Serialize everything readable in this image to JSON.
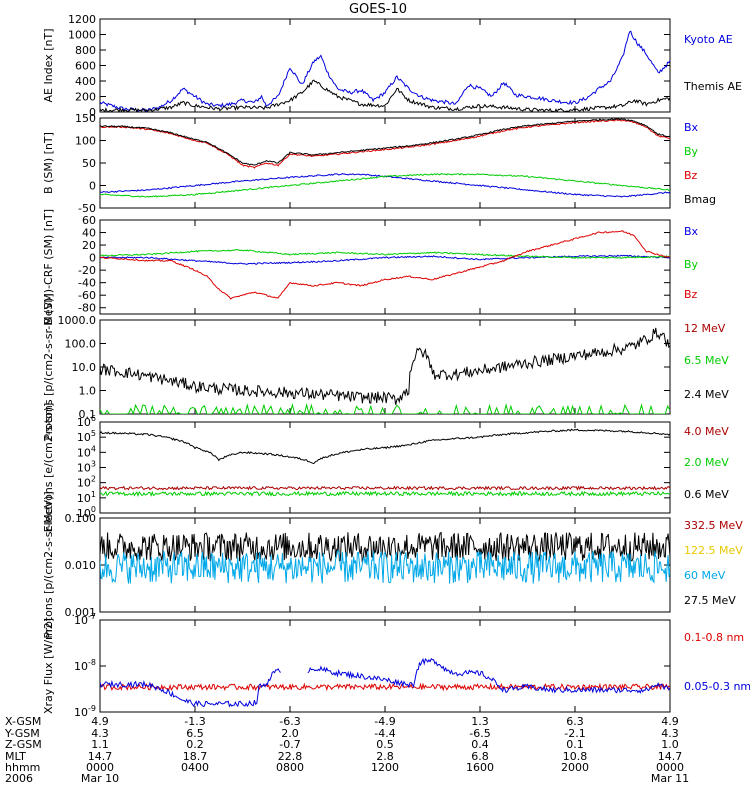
{
  "title": "GOES-10",
  "colors": {
    "black": "#000000",
    "blue": "#0000dd",
    "red": "#dd0000",
    "green": "#00cc00",
    "darkred": "#aa0000",
    "yellow": "#e6c800",
    "cyan": "#00a8e8"
  },
  "time": {
    "xlim": [
      0,
      24
    ],
    "ticks": [
      0,
      4,
      8,
      12,
      16,
      20,
      24
    ]
  },
  "ephem": {
    "labels": [
      "X-GSM",
      "Y-GSM",
      "Z-GSM",
      "MLT",
      "hhmm",
      "2006"
    ],
    "columns": [
      [
        "4.9",
        "4.3",
        "1.1",
        "14.7",
        "0000",
        "Mar 10"
      ],
      [
        "-1.3",
        "6.5",
        "0.2",
        "18.7",
        "0400",
        ""
      ],
      [
        "-6.3",
        "2.0",
        "-0.7",
        "22.8",
        "0800",
        ""
      ],
      [
        "-4.9",
        "-4.4",
        "0.5",
        "2.8",
        "1200",
        ""
      ],
      [
        "1.3",
        "-6.5",
        "0.4",
        "6.8",
        "1600",
        ""
      ],
      [
        "6.3",
        "-2.1",
        "0.1",
        "10.8",
        "2000",
        ""
      ],
      [
        "4.9",
        "4.3",
        "1.0",
        "14.7",
        "0000",
        "Mar 11"
      ]
    ]
  },
  "chart_data": [
    {
      "type": "line",
      "ylabel": "AE Index [nT]",
      "ylim": [
        0,
        1200
      ],
      "ticks": [
        "0",
        "200",
        "400",
        "600",
        "800",
        "1000",
        "1200"
      ],
      "legend": [
        {
          "name": "Kyoto AE",
          "color": "blue"
        },
        {
          "name": "Themis AE",
          "color": "black"
        }
      ],
      "series": [
        {
          "name": "Kyoto AE",
          "color": "blue",
          "x": [
            0,
            0.5,
            1,
            1.5,
            2,
            2.5,
            3,
            3.5,
            4,
            4.5,
            5,
            5.5,
            6,
            6.5,
            6.8,
            7,
            7.5,
            8,
            8.5,
            9,
            9.3,
            9.6,
            10,
            10.5,
            11,
            11.5,
            12,
            12.5,
            13,
            13.5,
            14,
            14.5,
            15,
            15.5,
            16,
            16.5,
            17,
            17.5,
            18,
            18.5,
            19,
            19.5,
            20,
            20.5,
            21,
            21.5,
            22,
            22.3,
            22.6,
            23,
            23.5,
            24
          ],
          "y": [
            120,
            80,
            40,
            30,
            20,
            60,
            150,
            300,
            200,
            100,
            80,
            100,
            150,
            120,
            200,
            80,
            200,
            580,
            350,
            650,
            720,
            500,
            300,
            250,
            280,
            150,
            250,
            450,
            300,
            200,
            150,
            130,
            100,
            350,
            300,
            200,
            380,
            220,
            200,
            180,
            150,
            130,
            120,
            180,
            300,
            400,
            700,
            1050,
            900,
            750,
            500,
            650
          ]
        },
        {
          "name": "Themis AE",
          "color": "black",
          "x": [
            0,
            1,
            2,
            3,
            3.5,
            4,
            5,
            6,
            7,
            7.5,
            8,
            8.5,
            9,
            9.5,
            10,
            11,
            12,
            12.5,
            13,
            14,
            15,
            16,
            17,
            18,
            19,
            20,
            21,
            22,
            22.5,
            23,
            23.5,
            24
          ],
          "y": [
            20,
            30,
            20,
            60,
            120,
            80,
            40,
            60,
            50,
            100,
            150,
            250,
            400,
            300,
            200,
            100,
            80,
            300,
            150,
            60,
            40,
            80,
            60,
            30,
            20,
            30,
            50,
            80,
            150,
            100,
            150,
            180
          ]
        }
      ]
    },
    {
      "type": "line",
      "ylabel": "B (SM) [nT]",
      "ylim": [
        -50,
        150
      ],
      "ticks": [
        "-50",
        "0",
        "50",
        "100",
        "150"
      ],
      "legend": [
        {
          "name": "Bx",
          "color": "blue"
        },
        {
          "name": "By",
          "color": "green"
        },
        {
          "name": "Bz",
          "color": "red"
        },
        {
          "name": "Bmag",
          "color": "black"
        }
      ],
      "series": [
        {
          "name": "Bx",
          "color": "blue",
          "x": [
            0,
            2,
            4,
            6,
            8,
            10,
            11,
            12,
            14,
            16,
            18,
            20,
            22,
            24
          ],
          "y": [
            -15,
            -10,
            0,
            10,
            18,
            25,
            25,
            20,
            10,
            0,
            -10,
            -20,
            -25,
            -15
          ]
        },
        {
          "name": "By",
          "color": "green",
          "x": [
            0,
            2,
            4,
            6,
            8,
            10,
            12,
            14,
            16,
            18,
            20,
            22,
            24
          ],
          "y": [
            -20,
            -25,
            -20,
            -10,
            0,
            10,
            20,
            25,
            25,
            20,
            10,
            0,
            -10
          ]
        },
        {
          "name": "Bz",
          "color": "red",
          "x": [
            0,
            1,
            2,
            3,
            4,
            4.5,
            5,
            5.5,
            6,
            6.5,
            7,
            7.5,
            8,
            9,
            10,
            12,
            13,
            14,
            15,
            16,
            17,
            18,
            19,
            20,
            21,
            22,
            22.5,
            23,
            23.5,
            24
          ],
          "y": [
            130,
            130,
            125,
            115,
            100,
            95,
            80,
            65,
            45,
            40,
            50,
            45,
            70,
            65,
            70,
            80,
            85,
            92,
            100,
            110,
            122,
            130,
            135,
            140,
            143,
            145,
            140,
            130,
            110,
            105
          ]
        },
        {
          "name": "Bmag",
          "color": "black",
          "x": [
            0,
            1,
            2,
            3,
            4,
            4.5,
            5,
            5.5,
            6,
            6.5,
            7,
            7.5,
            8,
            9,
            10,
            12,
            13,
            14,
            15,
            16,
            17,
            18,
            19,
            20,
            21,
            22,
            22.5,
            23,
            23.5,
            24
          ],
          "y": [
            132,
            131,
            127,
            117,
            102,
            97,
            82,
            67,
            50,
            45,
            55,
            50,
            73,
            68,
            73,
            83,
            88,
            95,
            103,
            113,
            125,
            133,
            138,
            143,
            146,
            148,
            143,
            133,
            114,
            108
          ]
        }
      ]
    },
    {
      "type": "line",
      "ylabel": "B (SM)-CRF (SM) [nT]",
      "ylim": [
        -90,
        60
      ],
      "ticks": [
        "-80",
        "-60",
        "-40",
        "-20",
        "0",
        "20",
        "40",
        "60"
      ],
      "legend": [
        {
          "name": "Bx",
          "color": "blue"
        },
        {
          "name": "By",
          "color": "green"
        },
        {
          "name": "Bz",
          "color": "red"
        }
      ],
      "series": [
        {
          "name": "Bx",
          "color": "blue",
          "x": [
            0,
            2,
            4,
            6,
            8,
            10,
            12,
            14,
            16,
            18,
            20,
            22,
            24
          ],
          "y": [
            0,
            0,
            -5,
            -10,
            -8,
            -5,
            0,
            2,
            -3,
            0,
            2,
            3,
            0
          ]
        },
        {
          "name": "By",
          "color": "green",
          "x": [
            0,
            2,
            4,
            6,
            8,
            10,
            12,
            14,
            16,
            18,
            20,
            22,
            24
          ],
          "y": [
            3,
            5,
            10,
            12,
            5,
            8,
            5,
            8,
            5,
            2,
            0,
            0,
            2
          ]
        },
        {
          "name": "Bz",
          "color": "red",
          "x": [
            0,
            1,
            2,
            3,
            4,
            4.5,
            5,
            5.5,
            6,
            6.5,
            7,
            7.5,
            8,
            9,
            10,
            11,
            12,
            13,
            14,
            15,
            16,
            17,
            18,
            19,
            20,
            21,
            22,
            22.5,
            23,
            23.5,
            24
          ],
          "y": [
            0,
            -2,
            -5,
            -5,
            -20,
            -30,
            -50,
            -65,
            -60,
            -55,
            -60,
            -65,
            -40,
            -45,
            -40,
            -45,
            -35,
            -30,
            -35,
            -25,
            -15,
            -5,
            10,
            20,
            30,
            40,
            42,
            35,
            10,
            5,
            0
          ]
        }
      ]
    },
    {
      "type": "line",
      "log": true,
      "ylabel": "Protons [p/(cm2-s-sr-MeV)]",
      "ylim": [
        0.1,
        1000
      ],
      "ticks": [
        "0.1",
        "1.0",
        "10.0",
        "100.0",
        "1000.0"
      ],
      "legend": [
        {
          "name": "12 MeV",
          "color": "darkred"
        },
        {
          "name": "6.5 MeV",
          "color": "green"
        },
        {
          "name": "2.4 MeV",
          "color": "black"
        }
      ],
      "series": [
        {
          "name": "2.4 MeV",
          "color": "black",
          "x": [
            0,
            1,
            2,
            3,
            4,
            5,
            6,
            7,
            8,
            9,
            10,
            11,
            12,
            12.5,
            13,
            13.5,
            14,
            15,
            16,
            17,
            18,
            19,
            20,
            21,
            22,
            22.5,
            23,
            23.5,
            24
          ],
          "y": [
            8,
            6,
            4,
            2.5,
            1.5,
            1.2,
            1.0,
            0.9,
            0.8,
            0.7,
            0.6,
            0.5,
            0.5,
            0.4,
            1.0,
            50,
            5,
            5,
            7,
            10,
            15,
            20,
            30,
            40,
            60,
            80,
            150,
            300,
            60
          ]
        }
      ]
    },
    {
      "type": "line",
      "log": true,
      "ylabel": "Electrons [e/(cm2-s-sr)]",
      "ylim": [
        1,
        1000000
      ],
      "ticks": [
        "10^0",
        "10^1",
        "10^2",
        "10^3",
        "10^4",
        "10^5",
        "10^6"
      ],
      "legend": [
        {
          "name": "4.0 MeV",
          "color": "darkred"
        },
        {
          "name": "2.0 MeV",
          "color": "green"
        },
        {
          "name": "0.6 MeV",
          "color": "black"
        }
      ],
      "series": [
        {
          "name": "0.6 MeV",
          "color": "black",
          "x": [
            0,
            2,
            3,
            4,
            5,
            6,
            7,
            8,
            9,
            10,
            11,
            12,
            13,
            14,
            15,
            16,
            18,
            20,
            22,
            24
          ],
          "y": [
            200000,
            150000,
            80000,
            20000,
            3000,
            10000,
            8000,
            5000,
            2000,
            8000,
            15000,
            20000,
            30000,
            60000,
            80000,
            100000,
            200000,
            300000,
            250000,
            150000
          ]
        }
      ]
    },
    {
      "type": "line",
      "log": true,
      "ylabel": "Protons [p/(cm2-s-sr-MeV)]",
      "ylim": [
        0.001,
        0.1
      ],
      "ticks": [
        "0.001",
        "0.010",
        "0.100"
      ],
      "legend": [
        {
          "name": "332.5 MeV",
          "color": "darkred"
        },
        {
          "name": "122.5 MeV",
          "color": "yellow"
        },
        {
          "name": "60 MeV",
          "color": "cyan"
        },
        {
          "name": "27.5 MeV",
          "color": "black"
        }
      ],
      "series": []
    },
    {
      "type": "line",
      "log": true,
      "ylabel": "Xray Flux [W/m2]",
      "ylim": [
        1e-09,
        1e-07
      ],
      "ticks": [
        "10^-9",
        "10^-8",
        "10^-7"
      ],
      "legend": [
        {
          "name": "0.1-0.8 nm",
          "color": "red"
        },
        {
          "name": "0.05-0.3 nm",
          "color": "blue"
        }
      ],
      "series": [
        {
          "name": "0.1-0.8 nm",
          "color": "red",
          "x": [
            0,
            6.9,
            7.7,
            24
          ],
          "y": [
            3.5e-09,
            3.5e-09,
            3.5e-09,
            3.5e-09
          ]
        },
        {
          "name": "0.05-0.3 nm",
          "color": "blue",
          "x": [
            0,
            2,
            3,
            3.5,
            4,
            5,
            6,
            6.6,
            6.7,
            7.0,
            7.3,
            7.6,
            8.2,
            8.7,
            9,
            10,
            11,
            12,
            13,
            13.2,
            13.5,
            14,
            14.3,
            14.6,
            15,
            16,
            17,
            18,
            19,
            20,
            21,
            22,
            23,
            23.5,
            24
          ],
          "y": [
            4e-09,
            4e-09,
            2.5e-09,
            1.8e-09,
            1.5e-09,
            1.5e-09,
            1.5e-09,
            1.6e-09,
            3.5e-09,
            4e-09,
            7e-09,
            8e-09,
            null,
            8e-09,
            9e-09,
            7e-09,
            6e-09,
            5e-09,
            4e-09,
            4e-09,
            1.2e-08,
            1.3e-08,
            1.1e-08,
            8e-09,
            7e-09,
            7e-09,
            3e-09,
            3.5e-09,
            3e-09,
            3e-09,
            3e-09,
            3e-09,
            3e-09,
            4e-09,
            3e-09
          ]
        }
      ]
    }
  ]
}
